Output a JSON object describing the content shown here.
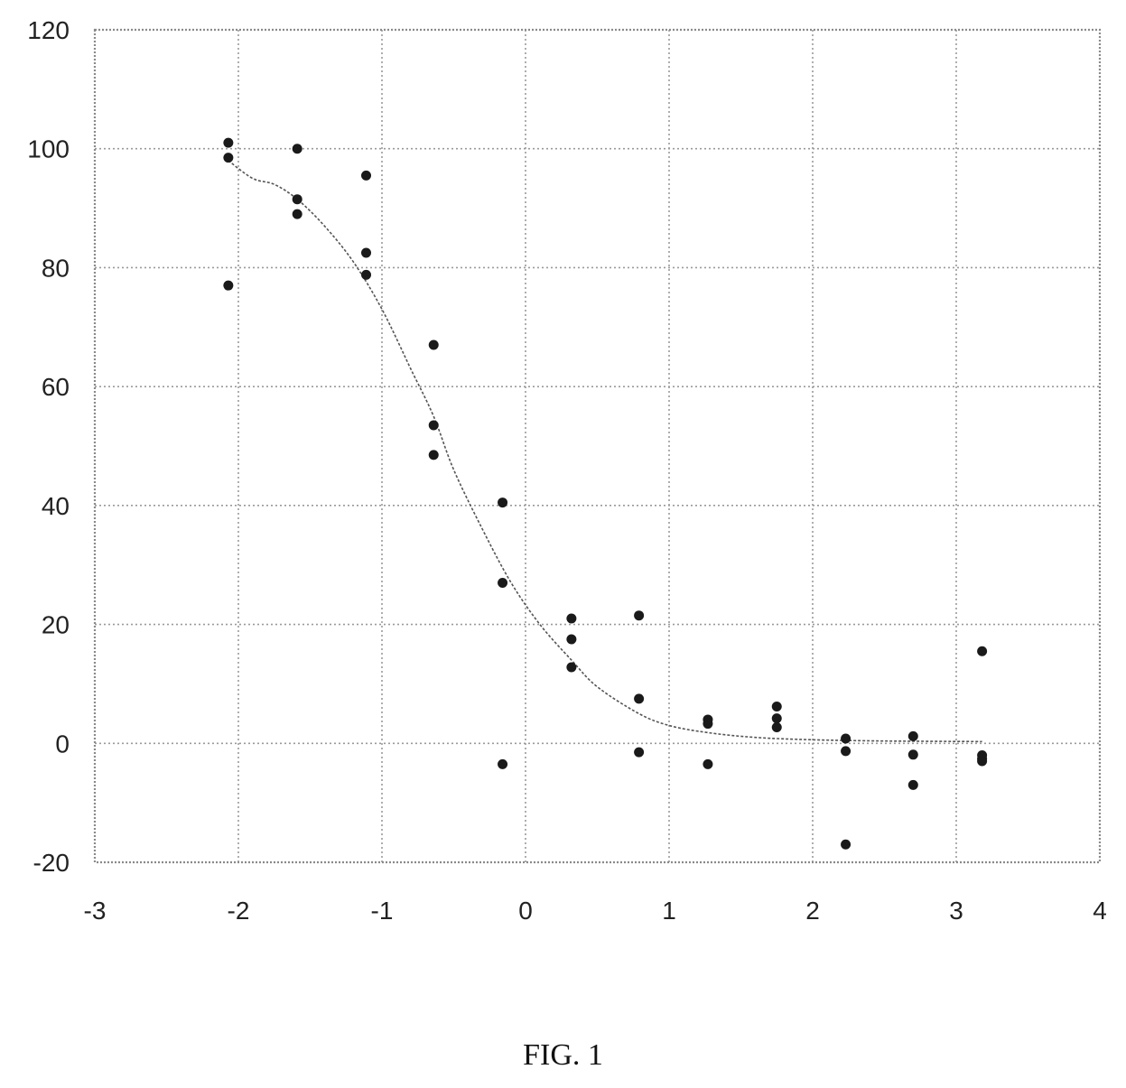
{
  "figure": {
    "caption": "FIG. 1"
  },
  "chart_data": {
    "type": "scatter",
    "xlim": [
      -3,
      4
    ],
    "ylim": [
      -20,
      120
    ],
    "xticks": [
      -3,
      -2,
      -1,
      0,
      1,
      2,
      3,
      4
    ],
    "yticks": [
      -20,
      0,
      20,
      40,
      60,
      80,
      100,
      120
    ],
    "xtick_labels": [
      "-3",
      "-2",
      "-1",
      "0",
      "1",
      "2",
      "3",
      "4"
    ],
    "ytick_labels": [
      "-20",
      "0",
      "20",
      "40",
      "60",
      "80",
      "100",
      "120"
    ],
    "grid": true,
    "points": [
      {
        "x": -2.07,
        "y": 101
      },
      {
        "x": -2.07,
        "y": 98.5
      },
      {
        "x": -2.07,
        "y": 77
      },
      {
        "x": -1.59,
        "y": 100
      },
      {
        "x": -1.59,
        "y": 91.5
      },
      {
        "x": -1.59,
        "y": 89
      },
      {
        "x": -1.11,
        "y": 95.5
      },
      {
        "x": -1.11,
        "y": 82.5
      },
      {
        "x": -1.11,
        "y": 78.8
      },
      {
        "x": -0.64,
        "y": 67
      },
      {
        "x": -0.64,
        "y": 53.5
      },
      {
        "x": -0.64,
        "y": 48.5
      },
      {
        "x": -0.16,
        "y": 40.5
      },
      {
        "x": -0.16,
        "y": 27
      },
      {
        "x": -0.16,
        "y": -3.5
      },
      {
        "x": 0.32,
        "y": 21
      },
      {
        "x": 0.32,
        "y": 17.5
      },
      {
        "x": 0.32,
        "y": 12.8
      },
      {
        "x": 0.79,
        "y": 21.5
      },
      {
        "x": 0.79,
        "y": 7.5
      },
      {
        "x": 0.79,
        "y": -1.5
      },
      {
        "x": 1.27,
        "y": 4
      },
      {
        "x": 1.27,
        "y": 3.3
      },
      {
        "x": 1.27,
        "y": -3.5
      },
      {
        "x": 1.75,
        "y": 6.2
      },
      {
        "x": 1.75,
        "y": 4.2
      },
      {
        "x": 1.75,
        "y": 2.7
      },
      {
        "x": 2.23,
        "y": 0.8
      },
      {
        "x": 2.23,
        "y": -1.3
      },
      {
        "x": 2.23,
        "y": -17
      },
      {
        "x": 2.7,
        "y": 1.2
      },
      {
        "x": 2.7,
        "y": -1.9
      },
      {
        "x": 2.7,
        "y": -7
      },
      {
        "x": 3.18,
        "y": 15.5
      },
      {
        "x": 3.18,
        "y": -2
      },
      {
        "x": 3.18,
        "y": -2.6
      },
      {
        "x": 3.18,
        "y": -3
      }
    ],
    "fit_curve": {
      "x": [
        -2.07,
        -1.9,
        -1.75,
        -1.59,
        -1.4,
        -1.2,
        -1.0,
        -0.8,
        -0.64,
        -0.5,
        -0.3,
        -0.1,
        0.1,
        0.32,
        0.5,
        0.79,
        1.0,
        1.27,
        1.6,
        2.0,
        2.5,
        3.18
      ],
      "y": [
        98,
        95,
        94,
        91.5,
        87,
        81,
        73,
        63,
        55,
        46,
        36,
        27,
        20,
        14,
        9.5,
        5,
        3,
        1.8,
        1,
        0.6,
        0.4,
        0.3
      ]
    }
  }
}
